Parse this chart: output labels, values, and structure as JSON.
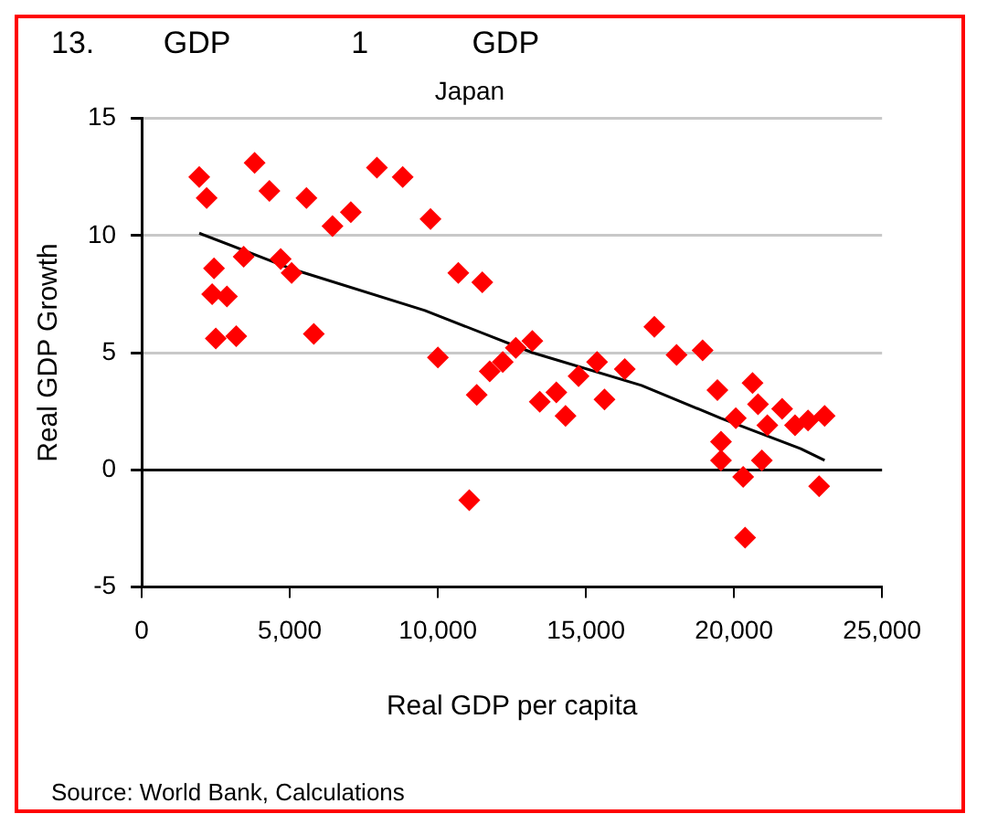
{
  "chart_data": {
    "type": "scatter",
    "title": "Japan",
    "subtitle": "13.        GDP              1            GDP",
    "xlabel": "Real GDP per capita",
    "ylabel": "Real GDP Growth",
    "annotations": [
      "Source: World Bank, Calculations"
    ],
    "x": [
      1940,
      2190,
      2375,
      2440,
      2500,
      2875,
      3190,
      3440,
      3810,
      4310,
      4690,
      5060,
      5560,
      5810,
      6440,
      7060,
      7940,
      8810,
      9750,
      10000,
      10690,
      11500,
      11310,
      11060,
      11750,
      12190,
      12630,
      13190,
      13440,
      14000,
      14310,
      14750,
      15375,
      15625,
      16310,
      17310,
      18060,
      18940,
      19440,
      19560,
      19560,
      20060,
      20310,
      20375,
      20625,
      20810,
      20940,
      21125,
      21625,
      22060,
      22500,
      23060,
      22875
    ],
    "series": [
      {
        "color": "#ff0000",
        "marker": "diamond",
        "values": [
          12.5,
          11.6,
          7.5,
          8.6,
          5.6,
          7.4,
          5.7,
          9.1,
          13.1,
          11.9,
          9.0,
          8.4,
          11.6,
          5.8,
          10.4,
          11.0,
          12.9,
          12.5,
          10.7,
          4.8,
          8.4,
          8.0,
          3.2,
          -1.3,
          4.2,
          4.6,
          5.2,
          5.5,
          2.9,
          3.3,
          2.3,
          4.0,
          4.6,
          3.0,
          4.3,
          6.1,
          4.9,
          5.1,
          3.4,
          1.2,
          0.4,
          2.2,
          -0.3,
          -2.9,
          3.7,
          2.8,
          0.4,
          1.9,
          2.6,
          1.9,
          2.1,
          2.3,
          -0.7
        ]
      },
      {
        "type": "line",
        "color": "#000000",
        "marker": "none",
        "x": [
          1940,
          5000,
          9560,
          13190,
          16875,
          19560,
          22250,
          23060
        ],
        "values": [
          10.1,
          8.6,
          6.8,
          5.0,
          3.6,
          2.2,
          0.9,
          0.4
        ]
      }
    ],
    "xlim": [
      0,
      25000
    ],
    "xticks": [
      0,
      {
        "value": 5000,
        "label": "5,000"
      },
      {
        "value": 10000,
        "label": "10,000"
      },
      {
        "value": 15000,
        "label": "15,000"
      },
      {
        "value": 20000,
        "label": "20,000"
      },
      {
        "value": 25000,
        "label": "25,000"
      }
    ],
    "ylim": [
      -5,
      15
    ],
    "yticks": [
      -5,
      0,
      5,
      10,
      15
    ],
    "grid": "y",
    "legend": false
  }
}
